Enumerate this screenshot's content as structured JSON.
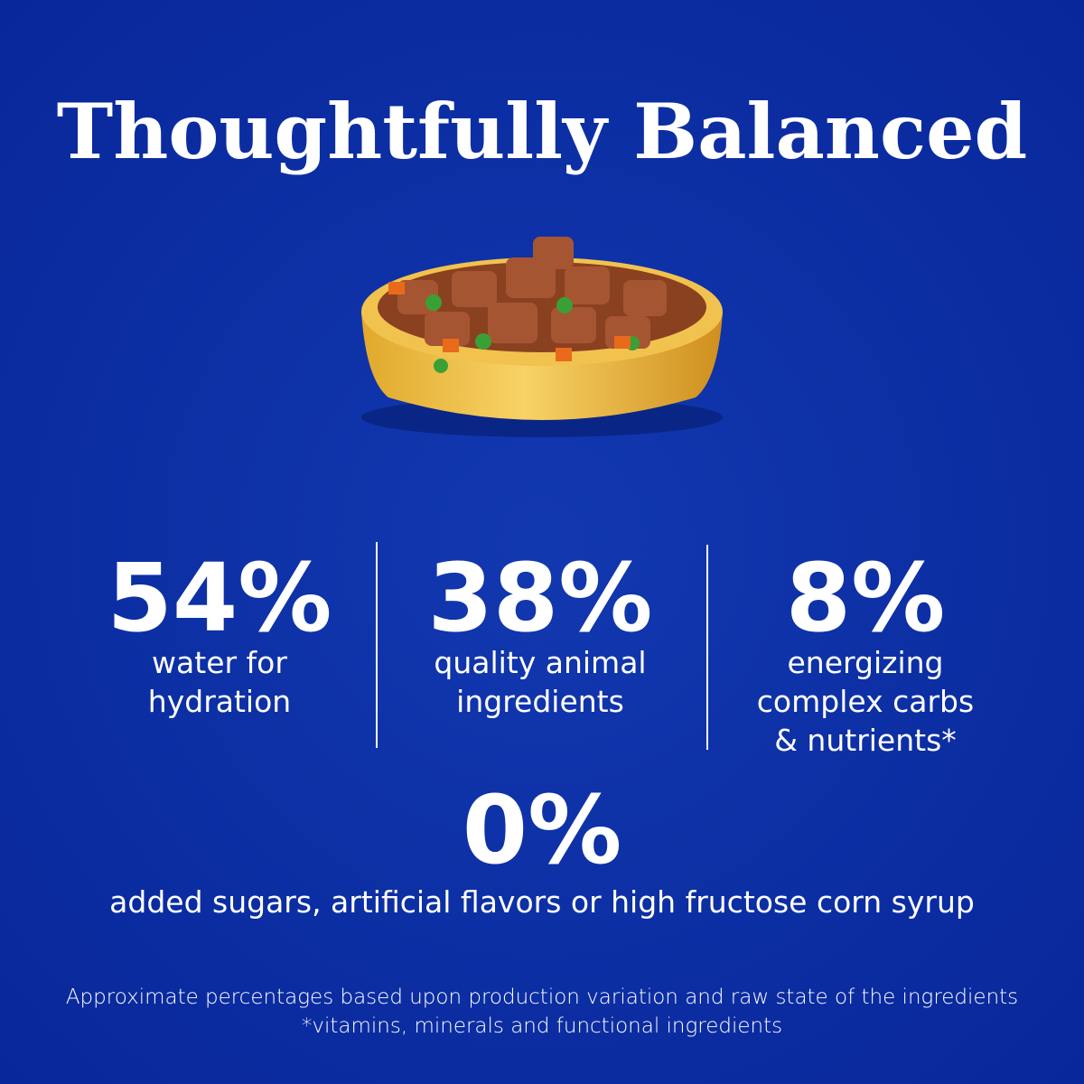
{
  "header": {
    "title": "Thoughtfully Balanced"
  },
  "stats": [
    {
      "value": "54%",
      "lines": [
        "water for",
        "hydration"
      ]
    },
    {
      "value": "38%",
      "lines": [
        "quality animal",
        "ingredients"
      ]
    },
    {
      "value": "8%",
      "lines": [
        "energizing",
        "complex carbs",
        "& nutrients*"
      ]
    }
  ],
  "highlight": {
    "value": "0%",
    "text": "added sugars, artificial flavors or high fructose corn syrup"
  },
  "footnotes": [
    "Approximate percentages based upon production variation and raw state of the ingredients",
    "*vitamins, minerals and functional ingredients"
  ]
}
